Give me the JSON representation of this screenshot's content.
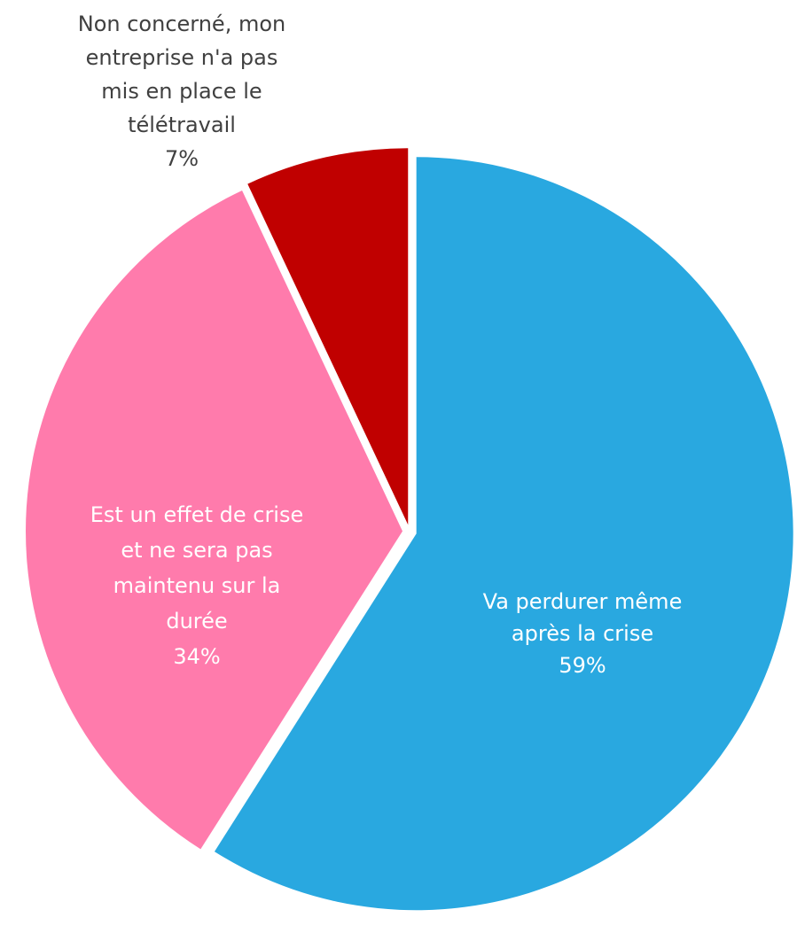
{
  "chart_data": {
    "type": "pie",
    "categories": [
      "Va perdurer même après la crise",
      "Est un effet de crise et ne sera pas maintenu sur la durée",
      "Non concerné, mon entreprise n'a pas mis en place le télétravail"
    ],
    "values": [
      59,
      34,
      7
    ],
    "value_labels": [
      "59%",
      "34%",
      "7%"
    ],
    "colors": [
      "#29a8e0",
      "#ff7bac",
      "#c00000"
    ]
  }
}
